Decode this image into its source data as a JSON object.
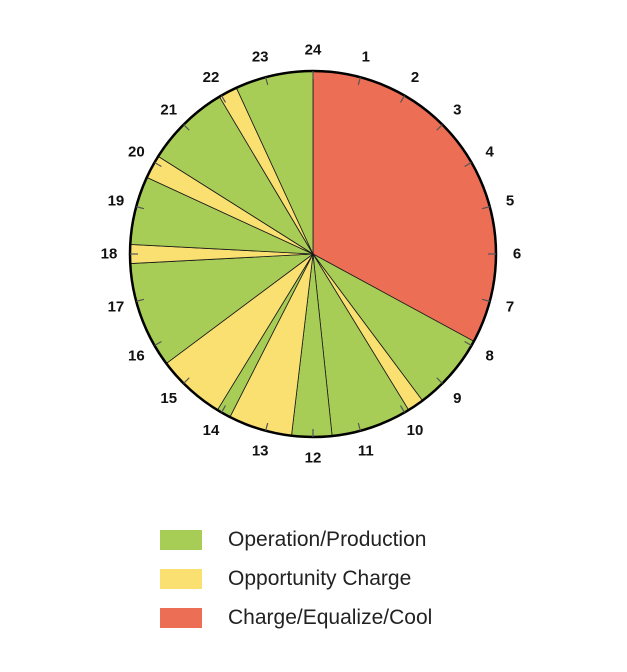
{
  "chart_data": {
    "type": "pie",
    "title": "",
    "hours": [
      "1",
      "2",
      "3",
      "4",
      "5",
      "6",
      "7",
      "8",
      "9",
      "10",
      "11",
      "12",
      "13",
      "14",
      "15",
      "16",
      "17",
      "18",
      "19",
      "20",
      "21",
      "22",
      "23",
      "24"
    ],
    "slices": [
      {
        "series": "charge",
        "start_hour": 0,
        "end_hour": 7.9
      },
      {
        "series": "operation",
        "start_hour": 7.9,
        "end_hour": 9.55
      },
      {
        "series": "opportunity",
        "start_hour": 9.55,
        "end_hour": 9.9
      },
      {
        "series": "operation",
        "start_hour": 9.9,
        "end_hour": 11.6
      },
      {
        "series": "operation",
        "start_hour": 11.6,
        "end_hour": 12.45
      },
      {
        "series": "opportunity",
        "start_hour": 12.45,
        "end_hour": 13.8
      },
      {
        "series": "operation",
        "start_hour": 13.8,
        "end_hour": 14.1
      },
      {
        "series": "opportunity",
        "start_hour": 14.1,
        "end_hour": 15.55
      },
      {
        "series": "operation",
        "start_hour": 15.55,
        "end_hour": 17.8
      },
      {
        "series": "opportunity",
        "start_hour": 17.8,
        "end_hour": 18.2
      },
      {
        "series": "operation",
        "start_hour": 18.2,
        "end_hour": 19.65
      },
      {
        "series": "opportunity",
        "start_hour": 19.65,
        "end_hour": 20.15
      },
      {
        "series": "operation",
        "start_hour": 20.15,
        "end_hour": 21.95
      },
      {
        "series": "opportunity",
        "start_hour": 21.95,
        "end_hour": 22.35
      },
      {
        "series": "operation",
        "start_hour": 22.35,
        "end_hour": 24
      }
    ],
    "series": [
      {
        "key": "operation",
        "name": "Operation/Production",
        "color": "#a8cd56"
      },
      {
        "key": "opportunity",
        "name": "Opportunity Charge",
        "color": "#f9e070"
      },
      {
        "key": "charge",
        "name": "Charge/Equalize/Cool",
        "color": "#ec6e55"
      }
    ],
    "legend_position": "bottom"
  }
}
